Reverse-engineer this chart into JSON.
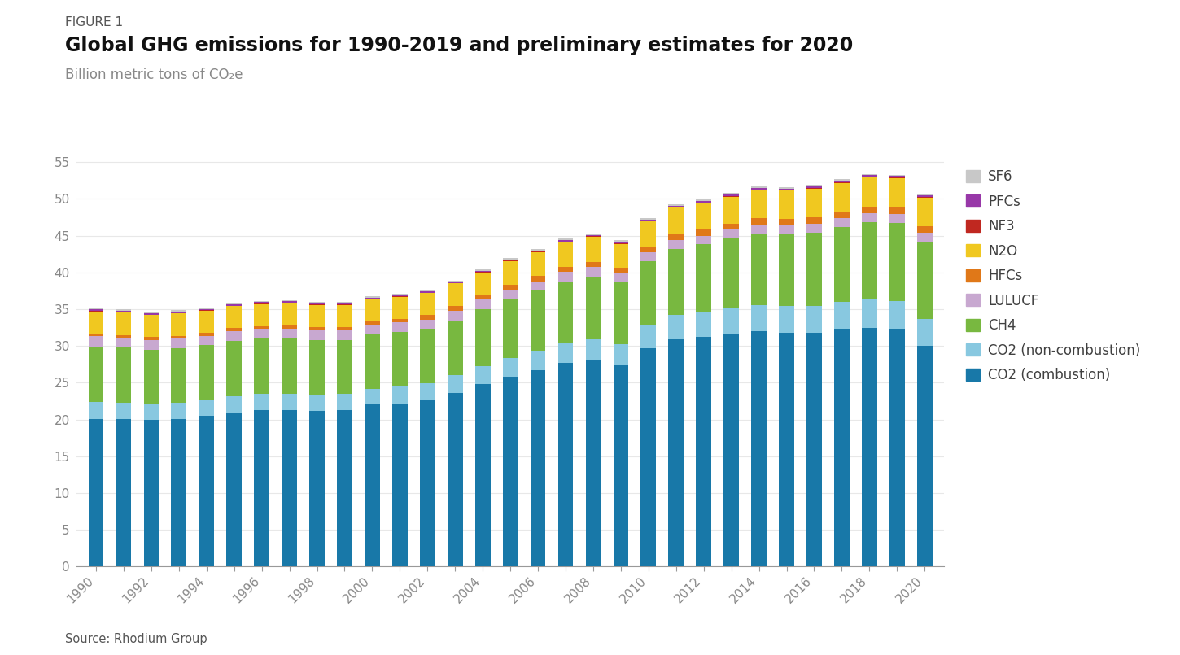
{
  "figure_label": "FIGURE 1",
  "title": "Global GHG emissions for 1990-2019 and preliminary estimates for 2020",
  "subtitle": "Billion metric tons of CO₂e",
  "source": "Source: Rhodium Group",
  "years": [
    1990,
    1991,
    1992,
    1993,
    1994,
    1995,
    1996,
    1997,
    1998,
    1999,
    2000,
    2001,
    2002,
    2003,
    2004,
    2005,
    2006,
    2007,
    2008,
    2009,
    2010,
    2011,
    2012,
    2013,
    2014,
    2015,
    2016,
    2017,
    2018,
    2019,
    2020
  ],
  "xtick_labels": [
    "1990",
    "",
    "1992",
    "",
    "1994",
    "",
    "1996",
    "",
    "1998",
    "",
    "2000",
    "",
    "2002",
    "",
    "2004",
    "",
    "2006",
    "",
    "2008",
    "",
    "2010",
    "",
    "2012",
    "",
    "2014",
    "",
    "2016",
    "",
    "2018",
    "",
    "2020"
  ],
  "series": {
    "CO2 (combustion)": [
      20.1,
      20.1,
      19.9,
      20.1,
      20.5,
      21.0,
      21.3,
      21.3,
      21.2,
      21.3,
      22.0,
      22.2,
      22.6,
      23.6,
      24.8,
      25.8,
      26.7,
      27.7,
      28.0,
      27.4,
      29.7,
      30.9,
      31.2,
      31.6,
      32.0,
      31.8,
      31.8,
      32.3,
      32.5,
      32.3,
      30.0
    ],
    "CO2 (non-combustion)": [
      2.3,
      2.2,
      2.2,
      2.2,
      2.2,
      2.2,
      2.2,
      2.2,
      2.2,
      2.2,
      2.2,
      2.3,
      2.3,
      2.4,
      2.5,
      2.6,
      2.7,
      2.8,
      2.9,
      2.8,
      3.1,
      3.3,
      3.4,
      3.5,
      3.6,
      3.6,
      3.6,
      3.7,
      3.8,
      3.8,
      3.7
    ],
    "CH4": [
      7.5,
      7.5,
      7.4,
      7.4,
      7.4,
      7.5,
      7.5,
      7.5,
      7.4,
      7.3,
      7.4,
      7.4,
      7.4,
      7.5,
      7.7,
      7.9,
      8.1,
      8.3,
      8.5,
      8.4,
      8.7,
      9.0,
      9.2,
      9.5,
      9.7,
      9.8,
      10.0,
      10.2,
      10.5,
      10.6,
      10.5
    ],
    "LULUCF": [
      1.4,
      1.3,
      1.3,
      1.3,
      1.3,
      1.3,
      1.3,
      1.3,
      1.3,
      1.3,
      1.3,
      1.3,
      1.3,
      1.3,
      1.3,
      1.3,
      1.3,
      1.3,
      1.3,
      1.3,
      1.2,
      1.2,
      1.2,
      1.2,
      1.2,
      1.2,
      1.2,
      1.2,
      1.2,
      1.2,
      1.2
    ],
    "HFCs": [
      0.4,
      0.4,
      0.4,
      0.4,
      0.4,
      0.4,
      0.4,
      0.5,
      0.5,
      0.5,
      0.5,
      0.5,
      0.6,
      0.6,
      0.6,
      0.7,
      0.7,
      0.7,
      0.7,
      0.7,
      0.7,
      0.8,
      0.8,
      0.8,
      0.9,
      0.9,
      0.9,
      0.9,
      0.9,
      0.9,
      0.9
    ],
    "N2O": [
      3.0,
      3.0,
      3.0,
      3.0,
      3.0,
      3.0,
      3.0,
      3.0,
      3.0,
      3.0,
      3.0,
      3.0,
      3.0,
      3.1,
      3.1,
      3.2,
      3.2,
      3.3,
      3.4,
      3.3,
      3.5,
      3.6,
      3.6,
      3.7,
      3.8,
      3.8,
      3.9,
      3.9,
      4.0,
      4.0,
      3.9
    ],
    "NF3": [
      0.05,
      0.05,
      0.05,
      0.05,
      0.05,
      0.05,
      0.05,
      0.05,
      0.05,
      0.05,
      0.05,
      0.05,
      0.05,
      0.05,
      0.1,
      0.1,
      0.1,
      0.1,
      0.1,
      0.1,
      0.1,
      0.1,
      0.1,
      0.1,
      0.1,
      0.1,
      0.1,
      0.1,
      0.1,
      0.1,
      0.1
    ],
    "PFCs": [
      0.2,
      0.2,
      0.2,
      0.2,
      0.2,
      0.2,
      0.2,
      0.2,
      0.15,
      0.15,
      0.15,
      0.15,
      0.15,
      0.15,
      0.15,
      0.2,
      0.2,
      0.2,
      0.2,
      0.2,
      0.2,
      0.2,
      0.2,
      0.2,
      0.2,
      0.2,
      0.2,
      0.2,
      0.2,
      0.2,
      0.2
    ],
    "SF6": [
      0.2,
      0.2,
      0.2,
      0.2,
      0.2,
      0.2,
      0.2,
      0.2,
      0.2,
      0.2,
      0.2,
      0.2,
      0.2,
      0.2,
      0.2,
      0.2,
      0.2,
      0.2,
      0.2,
      0.2,
      0.2,
      0.2,
      0.2,
      0.2,
      0.2,
      0.2,
      0.2,
      0.2,
      0.2,
      0.2,
      0.2
    ]
  },
  "series_order": [
    "CO2 (combustion)",
    "CO2 (non-combustion)",
    "CH4",
    "LULUCF",
    "HFCs",
    "N2O",
    "NF3",
    "PFCs",
    "SF6"
  ],
  "colors": {
    "CO2 (combustion)": "#1878a8",
    "CO2 (non-combustion)": "#88c8e0",
    "CH4": "#78b840",
    "LULUCF": "#c8a8d0",
    "HFCs": "#e07818",
    "N2O": "#f0c820",
    "NF3": "#c02820",
    "PFCs": "#9838a8",
    "SF6": "#c8c8c8"
  },
  "ylim": [
    0,
    57
  ],
  "yticks": [
    0,
    5,
    10,
    15,
    20,
    25,
    30,
    35,
    40,
    45,
    50,
    55
  ],
  "bar_width": 0.55,
  "background_color": "#ffffff",
  "figure_label_color": "#555555",
  "title_color": "#111111",
  "subtitle_color": "#888888",
  "source_color": "#555555",
  "grid_color": "#e8e8e8",
  "spine_color": "#999999",
  "tick_color": "#888888"
}
